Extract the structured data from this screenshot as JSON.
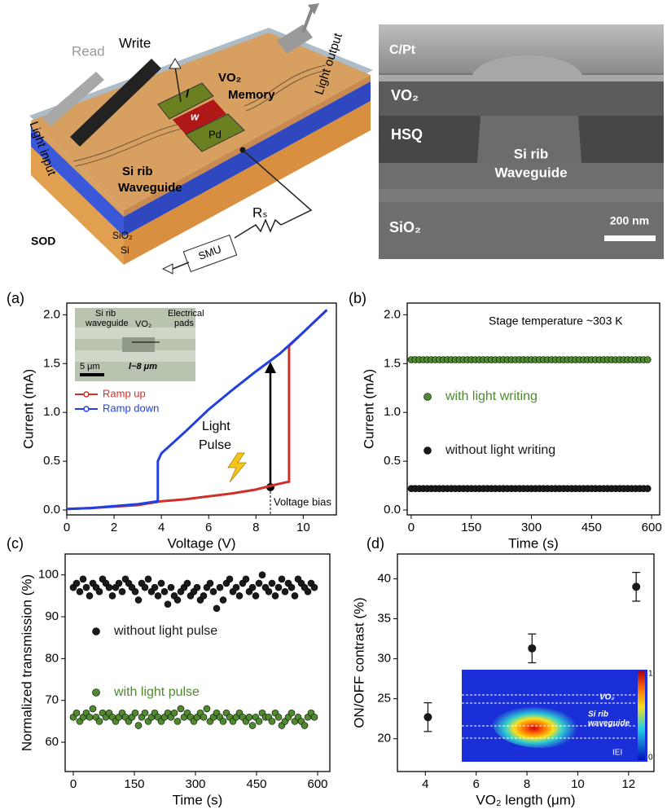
{
  "schematic": {
    "read": "Read",
    "write": "Write",
    "light_input": "Light input",
    "vo2": "VO₂",
    "memory": "Memory",
    "light_output": "Light output",
    "l": "l",
    "w": "w",
    "pd": "Pd",
    "si_rib": "Si rib",
    "waveguide": "Waveguide",
    "rs": "Rₛ",
    "smu": "SMU",
    "sod": "SOD",
    "sio2": "SiO₂",
    "si": "Si"
  },
  "sem_image": {
    "cpt": "C/Pt",
    "vo2": "VO₂",
    "hsq": "HSQ",
    "si_rib": "Si rib",
    "waveguide": "Waveguide",
    "sio2": "SiO₂",
    "scale": "200 nm"
  },
  "chart_data": [
    {
      "panel": "(a)",
      "type": "line",
      "xlabel": "Voltage (V)",
      "ylabel": "Current (mA)",
      "xlim": [
        0,
        11.4
      ],
      "ylim": [
        -0.05,
        2.12
      ],
      "xticks": [
        0,
        2,
        4,
        6,
        8,
        10
      ],
      "yticks": [
        {
          "value": 0,
          "label": "0.0"
        },
        0.5,
        {
          "value": 1,
          "label": "1.0"
        },
        1.5,
        {
          "value": 2,
          "label": "2.0"
        }
      ],
      "series": [
        {
          "name": "Ramp up",
          "color": "#d0302a",
          "x": [
            0,
            1,
            2,
            3,
            4,
            5,
            6,
            7,
            8,
            8.5,
            9,
            9.4,
            9.4,
            10,
            11
          ],
          "values": [
            0.01,
            0.02,
            0.035,
            0.05,
            0.09,
            0.11,
            0.14,
            0.17,
            0.21,
            0.24,
            0.27,
            0.29,
            1.68,
            1.82,
            2.05
          ]
        },
        {
          "name": "Ramp down",
          "color": "#2040e0",
          "x": [
            11,
            10,
            9,
            8,
            7,
            6,
            5,
            4,
            3.85,
            3.85,
            3,
            2,
            1,
            0
          ],
          "values": [
            2.05,
            1.82,
            1.6,
            1.42,
            1.23,
            1.03,
            0.8,
            0.58,
            0.5,
            0.09,
            0.06,
            0.04,
            0.02,
            0.01
          ]
        }
      ],
      "annotations": {
        "light": "Light",
        "pulse": "Pulse",
        "bias": "Voltage bias"
      },
      "inset": {
        "si_rib": "Si rib",
        "waveguide": "waveguide",
        "vo2": "VO₂",
        "electrical": "Electrical",
        "pads": "pads",
        "scale": "5 μm",
        "length": "l~8 μm"
      }
    },
    {
      "panel": "(b)",
      "type": "scatter",
      "xlabel": "Time (s)",
      "ylabel": "Current (mA)",
      "xlim": [
        -10,
        620
      ],
      "ylim": [
        -0.05,
        2.12
      ],
      "xticks": [
        0,
        150,
        300,
        450,
        600
      ],
      "yticks": [
        {
          "value": 0,
          "label": "0.0"
        },
        0.5,
        {
          "value": 1,
          "label": "1.0"
        },
        1.5,
        {
          "value": 2,
          "label": "2.0"
        }
      ],
      "annotation": "Stage temperature ~303 K",
      "x": [
        0,
        10,
        20,
        30,
        40,
        50,
        60,
        70,
        80,
        90,
        100,
        110,
        120,
        130,
        140,
        150,
        160,
        170,
        180,
        190,
        200,
        210,
        220,
        230,
        240,
        250,
        260,
        270,
        280,
        290,
        300,
        310,
        320,
        330,
        340,
        350,
        360,
        370,
        380,
        390,
        400,
        410,
        420,
        430,
        440,
        450,
        460,
        470,
        480,
        490,
        500,
        510,
        520,
        530,
        540,
        550,
        560,
        570,
        580,
        590
      ],
      "series": [
        {
          "name": "with light writing",
          "color": "#4f8a2e",
          "values": [
            1.54,
            1.54,
            1.54,
            1.54,
            1.54,
            1.54,
            1.54,
            1.54,
            1.54,
            1.54,
            1.54,
            1.54,
            1.54,
            1.54,
            1.54,
            1.54,
            1.54,
            1.54,
            1.54,
            1.54,
            1.54,
            1.54,
            1.54,
            1.54,
            1.54,
            1.54,
            1.54,
            1.54,
            1.54,
            1.54,
            1.54,
            1.54,
            1.54,
            1.54,
            1.54,
            1.54,
            1.54,
            1.54,
            1.54,
            1.54,
            1.54,
            1.54,
            1.54,
            1.54,
            1.54,
            1.54,
            1.54,
            1.54,
            1.54,
            1.54,
            1.54,
            1.54,
            1.54,
            1.54,
            1.54,
            1.54,
            1.54,
            1.54,
            1.54,
            1.54
          ]
        },
        {
          "name": "without light writing",
          "color": "#1a1a1a",
          "values": [
            0.22,
            0.22,
            0.22,
            0.22,
            0.22,
            0.22,
            0.22,
            0.22,
            0.22,
            0.22,
            0.22,
            0.22,
            0.22,
            0.22,
            0.22,
            0.22,
            0.22,
            0.22,
            0.22,
            0.22,
            0.22,
            0.22,
            0.22,
            0.22,
            0.22,
            0.22,
            0.22,
            0.22,
            0.22,
            0.22,
            0.22,
            0.22,
            0.22,
            0.22,
            0.22,
            0.22,
            0.22,
            0.22,
            0.22,
            0.22,
            0.22,
            0.22,
            0.22,
            0.22,
            0.22,
            0.22,
            0.22,
            0.22,
            0.22,
            0.22,
            0.22,
            0.22,
            0.22,
            0.22,
            0.22,
            0.22,
            0.22,
            0.22,
            0.22,
            0.22
          ]
        }
      ]
    },
    {
      "panel": "(c)",
      "type": "scatter",
      "xlabel": "Time (s)",
      "ylabel": "Normalized transmission (%)",
      "xlim": [
        -20,
        630
      ],
      "ylim": [
        53,
        105
      ],
      "xticks": [
        0,
        150,
        300,
        450,
        600
      ],
      "yticks": [
        60,
        70,
        80,
        90,
        100
      ],
      "x": [
        0,
        8,
        16,
        24,
        32,
        40,
        48,
        56,
        64,
        72,
        80,
        88,
        96,
        104,
        112,
        120,
        128,
        136,
        144,
        152,
        160,
        168,
        176,
        184,
        192,
        200,
        208,
        216,
        224,
        232,
        240,
        248,
        256,
        264,
        272,
        280,
        288,
        296,
        304,
        312,
        320,
        328,
        336,
        344,
        352,
        360,
        368,
        376,
        384,
        392,
        400,
        408,
        416,
        424,
        432,
        440,
        448,
        456,
        464,
        472,
        480,
        488,
        496,
        504,
        512,
        520,
        528,
        536,
        544,
        552,
        560,
        568,
        576,
        584,
        592
      ],
      "series": [
        {
          "name": "without light pulse",
          "color": "#1a1a1a",
          "values": [
            97,
            98,
            96,
            99,
            97,
            95,
            98,
            97,
            96,
            99,
            98,
            97,
            95,
            97,
            98,
            96,
            99,
            98,
            97,
            96,
            94,
            98,
            97,
            99,
            96,
            97,
            95,
            98,
            96,
            93,
            97,
            95,
            94,
            96,
            97,
            98,
            95,
            96,
            97,
            94,
            95,
            97,
            98,
            96,
            92,
            97,
            94,
            98,
            99,
            96,
            97,
            95,
            98,
            99,
            96,
            97,
            95,
            98,
            100,
            97,
            96,
            98,
            95,
            97,
            99,
            96,
            98,
            97,
            95,
            99,
            98,
            97,
            96,
            98,
            97
          ]
        },
        {
          "name": "with light pulse",
          "color": "#4f8a2e",
          "values": [
            66,
            67,
            65,
            66,
            67,
            66,
            68,
            66,
            65,
            67,
            66,
            67,
            66,
            65,
            66,
            67,
            66,
            65,
            66,
            67,
            64,
            66,
            67,
            65,
            66,
            67,
            66,
            65,
            66,
            67,
            66,
            67,
            65,
            68,
            66,
            67,
            66,
            65,
            66,
            67,
            66,
            68,
            65,
            66,
            67,
            66,
            65,
            67,
            66,
            65,
            66,
            67,
            66,
            65,
            66,
            64,
            66,
            65,
            67,
            66,
            66,
            65,
            67,
            66,
            64,
            65,
            66,
            67,
            65,
            66,
            65,
            64,
            66,
            67,
            66
          ]
        }
      ]
    },
    {
      "panel": "(d)",
      "type": "errorbar",
      "xlabel": "VO₂ length (μm)",
      "ylabel": "ON/OFF contrast (%)",
      "xlim": [
        2.9,
        13.0
      ],
      "ylim": [
        15.9,
        43.1
      ],
      "xticks": [
        4,
        6,
        8,
        10,
        12
      ],
      "yticks": [
        20,
        25,
        30,
        35,
        40
      ],
      "color": "#1a1a1a",
      "x": [
        4.1,
        8.2,
        12.3
      ],
      "values": [
        22.7,
        31.3,
        39.0
      ],
      "errors": [
        1.8,
        1.8,
        1.8
      ],
      "inset": {
        "vo2": "VO₂",
        "si_rib": "Si rib",
        "waveguide": "waveguide",
        "field": "IEI",
        "cmax": "1",
        "cmin": "0"
      }
    }
  ]
}
